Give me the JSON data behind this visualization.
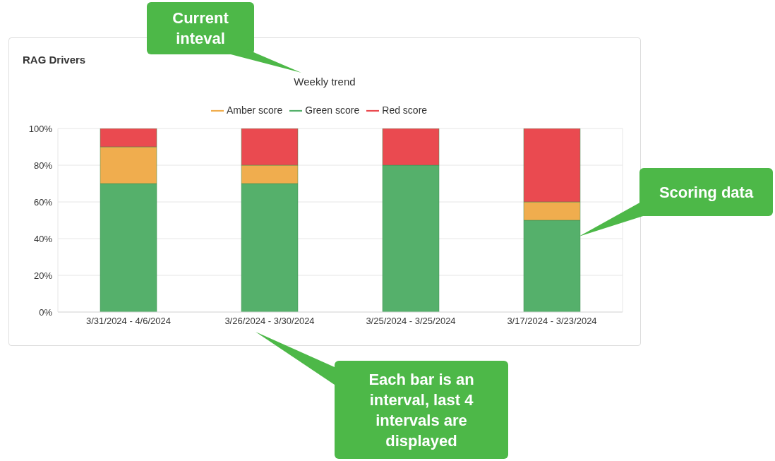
{
  "chart_data": {
    "type": "bar",
    "title": "RAG Drivers",
    "subtitle": "Weekly trend",
    "categories": [
      "3/31/2024 - 4/6/2024",
      "3/26/2024 - 3/30/2024",
      "3/25/2024 - 3/25/2024",
      "3/17/2024 - 3/23/2024"
    ],
    "series": [
      {
        "name": "Green score",
        "color": "#55b06b",
        "values": [
          70,
          70,
          80,
          50
        ]
      },
      {
        "name": "Amber score",
        "color": "#f0ad4e",
        "values": [
          20,
          10,
          0,
          10
        ]
      },
      {
        "name": "Red score",
        "color": "#ea4a50",
        "values": [
          10,
          20,
          20,
          40
        ]
      }
    ],
    "stacked": true,
    "ylim": [
      0,
      100
    ],
    "yticks": [
      {
        "value": 0,
        "label": "0%"
      },
      {
        "value": 20,
        "label": "20%"
      },
      {
        "value": 40,
        "label": "40%"
      },
      {
        "value": 60,
        "label": "60%"
      },
      {
        "value": 80,
        "label": "80%"
      },
      {
        "value": 100,
        "label": "100%"
      }
    ],
    "grid": true,
    "legend": "top",
    "annotations": [
      "Current inteval",
      "Scoring data",
      "Each bar is an interval, last 4 intervals are displayed"
    ]
  }
}
